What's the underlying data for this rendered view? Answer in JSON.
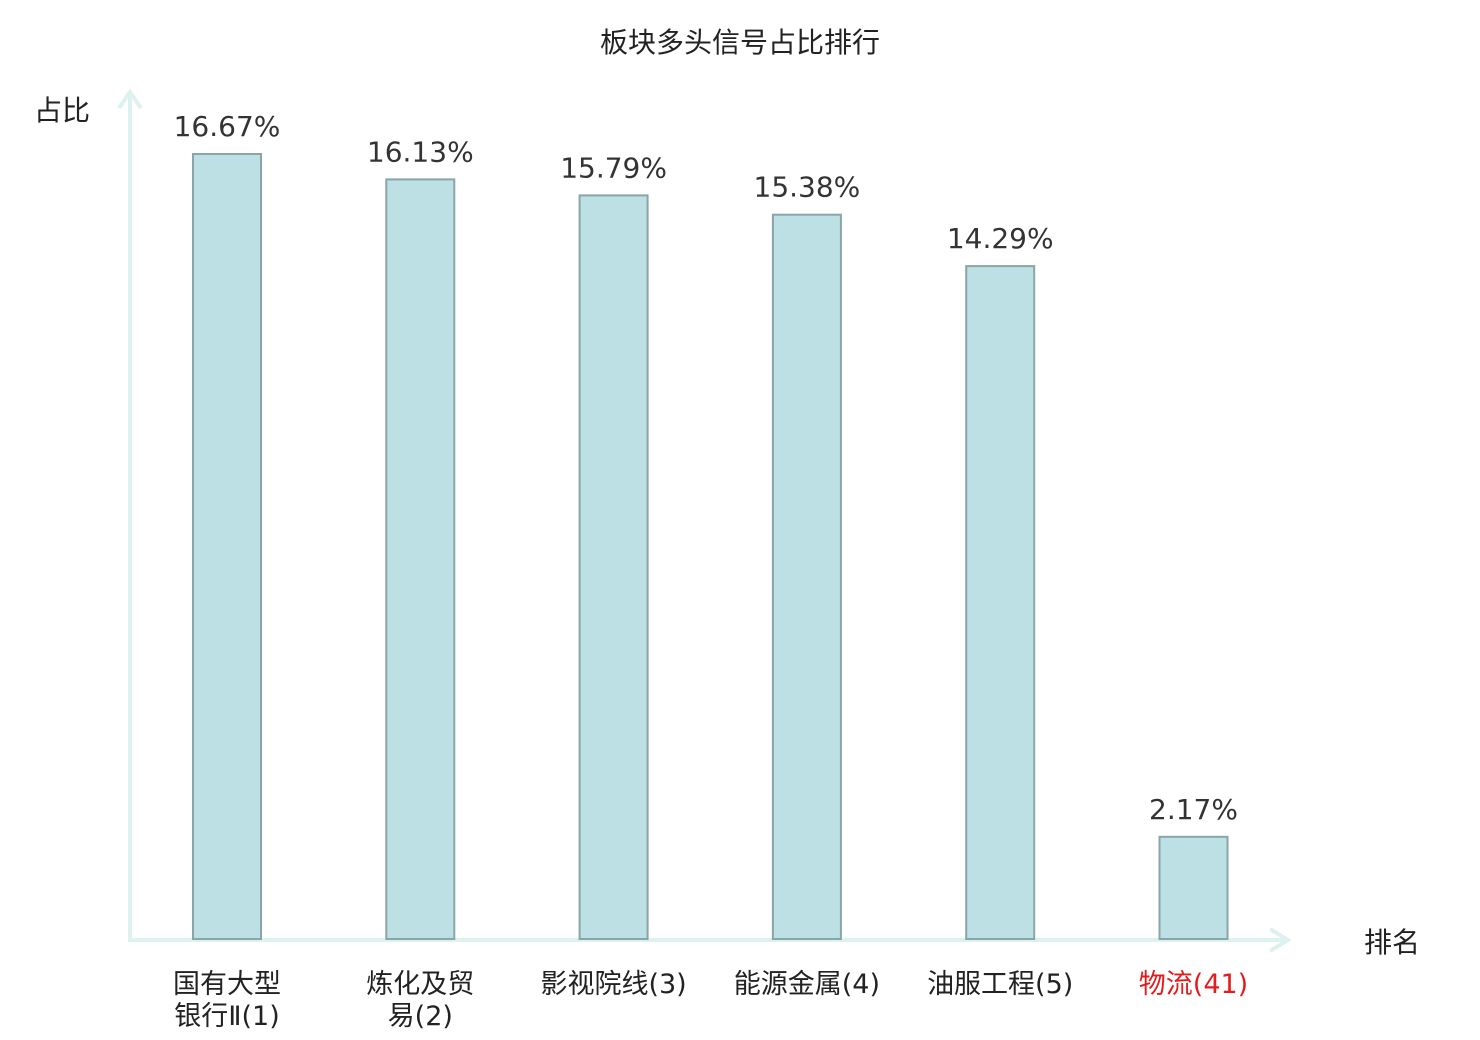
{
  "chart_data": {
    "type": "bar",
    "title": "板块多头信号占比排行",
    "ylabel": "占比",
    "xlabel": "排名",
    "categories": [
      [
        "国有大型",
        "银行Ⅱ(1)"
      ],
      [
        "炼化及贸",
        "易(2)"
      ],
      [
        "影视院线(3)"
      ],
      [
        "能源金属(4)"
      ],
      [
        "油服工程(5)"
      ],
      [
        "物流(41)"
      ]
    ],
    "values": [
      16.67,
      16.13,
      15.79,
      15.38,
      14.29,
      2.17
    ],
    "value_labels": [
      "16.67%",
      "16.13%",
      "15.79%",
      "15.38%",
      "14.29%",
      "2.17%"
    ],
    "highlight_index": 5,
    "ylim": [
      0,
      16.67
    ],
    "grid": false,
    "legend": "none",
    "colors": {
      "bar_fill": "#bce0e3",
      "bar_stroke": "#8aa5a7",
      "axis": "#ddf1ee",
      "text": "#222222",
      "highlight_text": "#e31d1d"
    }
  }
}
